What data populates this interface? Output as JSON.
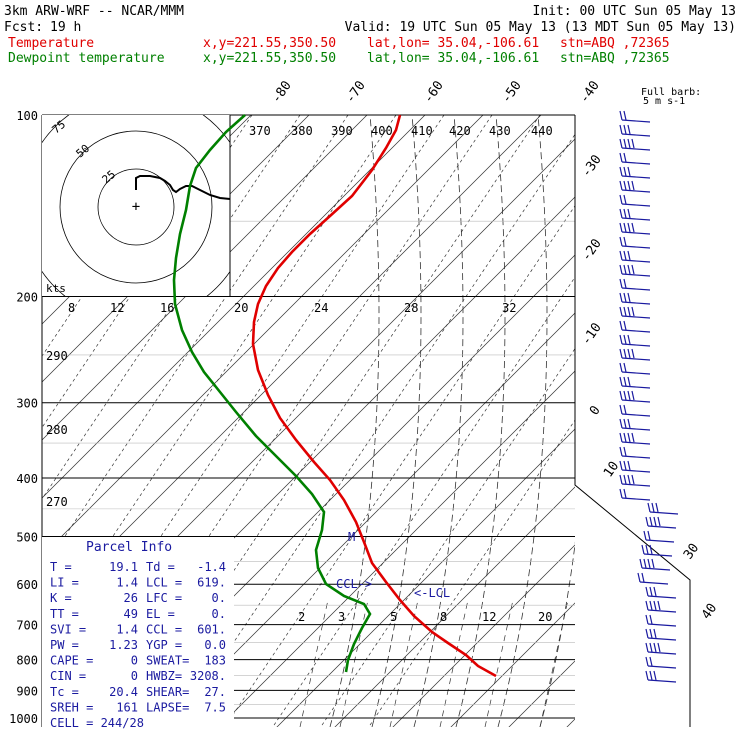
{
  "header": {
    "model": "3km ARW-WRF -- NCAR/MMM",
    "init": "Init: 00 UTC Sun 05 May 13",
    "fcst_label": "Fcst:",
    "fcst_value": "19 h",
    "valid": "Valid: 19 UTC Sun 05 May 13 (13 MDT Sun 05 May 13)",
    "temp_label": "Temperature",
    "dew_label": "Dewpoint temperature",
    "xy": "x,y=221.55,350.50",
    "latlon": "lat,lon= 35.04,-106.61",
    "stn": "stn=ABQ ,72365"
  },
  "colors": {
    "temperature": "#e00000",
    "dewpoint": "#008000",
    "accent": "#1a1aa0"
  },
  "chart_data": {
    "type": "line",
    "title": "",
    "pressure_levels": [
      "100",
      "200",
      "300",
      "400",
      "500",
      "600",
      "700",
      "800",
      "900",
      "1000"
    ],
    "isotherm_labels": [
      "-80",
      "-70",
      "-60",
      "-50",
      "-40",
      "-30",
      "-20",
      "-10",
      "0",
      "10",
      "30",
      "40"
    ],
    "theta_labels": [
      "370",
      "380",
      "390",
      "400",
      "410",
      "420",
      "430",
      "440"
    ],
    "theta_e_labels": [
      "290",
      "280",
      "270"
    ],
    "mixing_ratio_labels": [
      "2",
      "3",
      "5",
      "8",
      "12",
      "20"
    ],
    "hodograph": {
      "speed_unit": "kts",
      "rings": [
        "25",
        "50",
        "75"
      ],
      "speed_ticks": [
        "8",
        "12",
        "16",
        "20",
        "24",
        "28",
        "32"
      ]
    },
    "wind_barb_legend": [
      "Full barb:",
      "5 m s-1"
    ],
    "annotations": [
      "CCL->",
      "<-LCL",
      "M"
    ],
    "series": [
      {
        "name": "Temperature",
        "points": [
          [
            412,
            -51
          ],
          [
            400,
            -53
          ],
          [
            380,
            -55
          ],
          [
            350,
            -56
          ],
          [
            320,
            -55
          ],
          [
            290,
            -53
          ],
          [
            250,
            -50
          ],
          [
            220,
            -48
          ],
          [
            205,
            -46
          ],
          [
            200,
            -44
          ],
          [
            220,
            -36
          ],
          [
            260,
            -27
          ],
          [
            300,
            -21
          ],
          [
            340,
            -16
          ],
          [
            380,
            -11
          ],
          [
            420,
            -8
          ],
          [
            460,
            -6
          ],
          [
            500,
            -4
          ],
          [
            560,
            0
          ],
          [
            620,
            3
          ],
          [
            700,
            9
          ],
          [
            760,
            14
          ],
          [
            804,
            19
          ]
        ]
      },
      {
        "name": "Dewpoint temperature",
        "points": [
          [
            600,
            -8
          ],
          [
            500,
            -14
          ],
          [
            400,
            -20
          ],
          [
            300,
            -36
          ],
          [
            250,
            -48
          ],
          [
            200,
            -56
          ],
          [
            150,
            -66
          ],
          [
            125,
            -70
          ],
          [
            100,
            -76
          ],
          [
            110,
            -72
          ],
          [
            140,
            -64
          ],
          [
            180,
            -55
          ],
          [
            220,
            -46
          ],
          [
            260,
            -38
          ],
          [
            300,
            -34
          ],
          [
            340,
            -28
          ],
          [
            380,
            -24
          ],
          [
            420,
            -20
          ],
          [
            460,
            -18
          ],
          [
            500,
            -15
          ],
          [
            560,
            -11
          ],
          [
            620,
            -7
          ],
          [
            660,
            -3
          ],
          [
            700,
            -1
          ],
          [
            760,
            0
          ],
          [
            804,
            -1
          ]
        ]
      }
    ]
  },
  "parcel": {
    "title": "Parcel Info",
    "rows": [
      {
        "k1": "T  =",
        "v1": "19.1",
        "k2": "Td =",
        "v2": "-1.4"
      },
      {
        "k1": "LI =",
        "v1": "1.4",
        "k2": "LCL =",
        "v2": "619."
      },
      {
        "k1": "K  =",
        "v1": "26",
        "k2": "LFC =",
        "v2": "0."
      },
      {
        "k1": "TT =",
        "v1": "49",
        "k2": "EL  =",
        "v2": "0."
      },
      {
        "k1": "SVI =",
        "v1": "1.4",
        "k2": "CCL =",
        "v2": "601."
      },
      {
        "k1": "PW =",
        "v1": "1.23",
        "k2": "YGP =",
        "v2": "0.0"
      },
      {
        "k1": "CAPE =",
        "v1": "0",
        "k2": "SWEAT=",
        "v2": "183"
      },
      {
        "k1": "CIN  =",
        "v1": "0",
        "k2": "HWBZ=",
        "v2": "3208."
      },
      {
        "k1": "Tc =",
        "v1": "20.4",
        "k2": "SHEAR=",
        "v2": "27."
      },
      {
        "k1": "SREH =",
        "v1": "161",
        "k2": "LAPSE=",
        "v2": "7.5"
      },
      {
        "k1": "CELL = 244/28",
        "v1": "",
        "k2": "",
        "v2": ""
      }
    ]
  }
}
